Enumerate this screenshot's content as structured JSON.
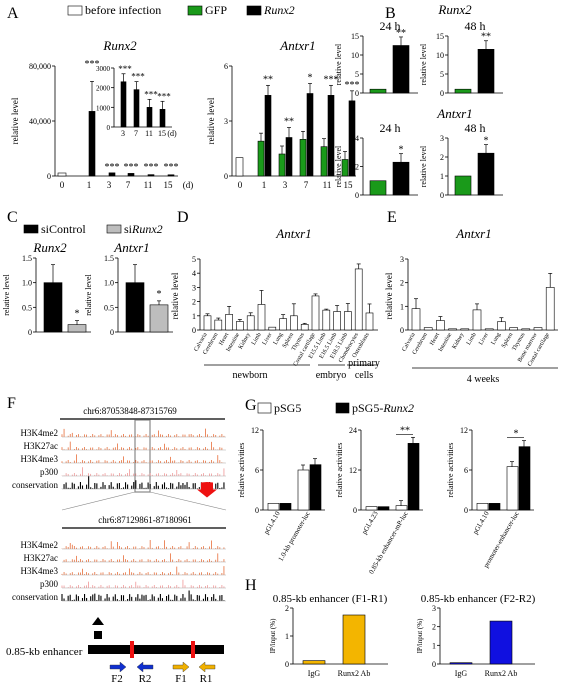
{
  "panels": [
    "A",
    "B",
    "C",
    "D",
    "E",
    "F",
    "G",
    "H"
  ],
  "colors": {
    "before": "#ffffff",
    "gfp": "#1a9a1a",
    "runx2": "#000000",
    "sicontrol": "#000000",
    "sirunx2": "#bdbdbd",
    "pSG5": "#ffffff",
    "pSG5Runx2": "#000000",
    "igg_f1": "#f3b500",
    "runx2ab_f1": "#f3b500",
    "igg_f2": "#1010e0",
    "runx2ab_f2": "#1010e0",
    "track": "#e55a1e",
    "highlight": "#888888",
    "arrow_red": "#ee1111"
  },
  "legendA": {
    "before": "before infection",
    "gfp": "GFP",
    "runx2": "Runx2"
  },
  "legendC": {
    "sicontrol": "siControl",
    "sirunx2_prefix": "si",
    "sirunx2_gene": "Runx2"
  },
  "legendG": {
    "pSG5": "pSG5",
    "pSG5Runx2_prefix": "pSG5-",
    "pSG5Runx2_gene": "Runx2"
  },
  "common": {
    "ylabel": "relative level",
    "ylabelActivities": "relative activities",
    "ylabelIP": "IP/input (%)",
    "days_unit": "(d)"
  },
  "chart_data": [
    {
      "panel": "A",
      "type": "bar",
      "title": "Runx2",
      "xlabel": "(d)",
      "ylabel": "relative level",
      "categories": [
        "0",
        "1",
        "3",
        "7",
        "11",
        "15"
      ],
      "ylim": [
        0,
        80000
      ],
      "yticks": [
        "0",
        "40,000",
        "80,000"
      ],
      "series": [
        {
          "name": "before infection",
          "values": [
            1,
            null,
            null,
            null,
            null,
            null
          ]
        },
        {
          "name": "GFP",
          "values": [
            null,
            0,
            0,
            0,
            0,
            0
          ]
        },
        {
          "name": "Runx2",
          "values": [
            null,
            47000,
            2300,
            1900,
            1000,
            900
          ]
        }
      ],
      "significance": [
        "",
        "***",
        "***",
        "***",
        "***",
        "***"
      ],
      "inset": {
        "categories": [
          "3",
          "7",
          "11",
          "15"
        ],
        "ylim": [
          0,
          3000
        ],
        "yticks": [
          "0",
          "1000",
          "2000",
          "3000"
        ],
        "values": [
          2300,
          1900,
          1000,
          900
        ],
        "significance": [
          "***",
          "***",
          "***",
          "***"
        ],
        "unit": "(d)"
      }
    },
    {
      "panel": "A",
      "type": "bar",
      "title": "Antxr1",
      "ylabel": "relative level",
      "categories": [
        "0",
        "1",
        "3",
        "7",
        "11",
        "15"
      ],
      "ylim": [
        0,
        6
      ],
      "yticks": [
        "0",
        "3",
        "6"
      ],
      "series": [
        {
          "name": "before infection",
          "values": [
            1,
            null,
            null,
            null,
            null,
            null
          ]
        },
        {
          "name": "GFP",
          "values": [
            null,
            1.9,
            1.2,
            2.0,
            1.6,
            0.9
          ]
        },
        {
          "name": "Runx2",
          "values": [
            null,
            4.4,
            2.1,
            4.5,
            4.4,
            4.1
          ]
        }
      ],
      "significance": [
        "",
        "**",
        "**",
        "*",
        "***",
        "***"
      ]
    },
    {
      "panel": "B",
      "type": "bar",
      "title": "Runx2",
      "subplots": [
        {
          "label": "24 h",
          "ylim": [
            0,
            15
          ],
          "yticks": [
            "0",
            "5",
            "10",
            "15"
          ],
          "values": {
            "GFP": 1,
            "Runx2": 12.5
          },
          "sig": "**"
        },
        {
          "label": "48 h",
          "ylim": [
            0,
            15
          ],
          "yticks": [
            "0",
            "5",
            "10",
            "15"
          ],
          "values": {
            "GFP": 1,
            "Runx2": 11.5
          },
          "sig": "**"
        }
      ]
    },
    {
      "panel": "B",
      "type": "bar",
      "title": "Antxr1",
      "subplots": [
        {
          "label": "24 h",
          "ylim": [
            0,
            4
          ],
          "yticks": [
            "0",
            "2",
            "4"
          ],
          "values": {
            "GFP": 1,
            "Runx2": 2.3
          },
          "sig": "*"
        },
        {
          "label": "48 h",
          "ylim": [
            0,
            3
          ],
          "yticks": [
            "0",
            "1",
            "2",
            "3"
          ],
          "values": {
            "GFP": 1,
            "Runx2": 2.2
          },
          "sig": "*"
        }
      ]
    },
    {
      "panel": "C",
      "type": "bar",
      "subplots": [
        {
          "title": "Runx2",
          "ylim": [
            0,
            1.5
          ],
          "yticks": [
            "0",
            "0.5",
            "1.0",
            "1.5"
          ],
          "values": {
            "siControl": 1.0,
            "siRunx2": 0.15
          },
          "sig": "*"
        },
        {
          "title": "Antxr1",
          "ylim": [
            0,
            1.5
          ],
          "yticks": [
            "0",
            "0.5",
            "1.0",
            "1.5"
          ],
          "values": {
            "siControl": 1.0,
            "siRunx2": 0.55
          },
          "sig": "*"
        }
      ]
    },
    {
      "panel": "D",
      "type": "bar",
      "title": "Antxr1",
      "ylabel": "relative level",
      "ylim": [
        0,
        5
      ],
      "yticks": [
        "0",
        "1",
        "2",
        "3",
        "4",
        "5"
      ],
      "categories": [
        "Calvaria",
        "Cerebrum",
        "Heart",
        "Intestine",
        "Kidney",
        "Limb",
        "Liver",
        "Lung",
        "Spleen",
        "Thymus",
        "Costal cartilage",
        "E15.5 Limb",
        "E16.5 Limb",
        "E18.5 Limb",
        "Chondrocytes",
        "Osteoblasts"
      ],
      "values": [
        1.0,
        0.7,
        1.1,
        0.6,
        1.0,
        1.8,
        0.2,
        0.8,
        1.0,
        0.4,
        2.4,
        1.4,
        1.3,
        1.3,
        4.3,
        1.2
      ],
      "groups": [
        "newborn",
        "embryo",
        "primary cells"
      ]
    },
    {
      "panel": "E",
      "type": "bar",
      "title": "Antxr1",
      "ylabel": "relative level",
      "ylim": [
        0,
        3
      ],
      "yticks": [
        "0",
        "1",
        "2",
        "3"
      ],
      "categories": [
        "Calvaria",
        "Cerebrum",
        "Heart",
        "Intestine",
        "Kidney",
        "Limb",
        "Liver",
        "Lung",
        "Spleen",
        "Thymus",
        "Bone marrow",
        "Costal cartilage"
      ],
      "values": [
        0.9,
        0.1,
        0.4,
        0.05,
        0.05,
        0.85,
        0.05,
        0.35,
        0.1,
        0.05,
        0.1,
        1.8
      ],
      "groups": [
        "4 weeks"
      ]
    },
    {
      "panel": "G",
      "type": "bar",
      "ylabel": "relative activities",
      "subplots": [
        {
          "xlabels": [
            "pGL4.10",
            "1.0-kb promoter-luc"
          ],
          "ylim": [
            0,
            12
          ],
          "yticks": [
            "0",
            "6",
            "12"
          ],
          "pSG5": [
            1,
            6
          ],
          "pSG5Runx2": [
            1,
            6.8
          ],
          "sig": ""
        },
        {
          "xlabels": [
            "pGL4.23",
            "0.85-kb enhancer-mP-luc"
          ],
          "ylim": [
            0,
            24
          ],
          "yticks": [
            "0",
            "12",
            "24"
          ],
          "pSG5": [
            1,
            1.3
          ],
          "pSG5Runx2": [
            1,
            20
          ],
          "sig": "**"
        },
        {
          "xlabels": [
            "pGL4.10",
            "promoter-enhancer-luc"
          ],
          "ylim": [
            0,
            12
          ],
          "yticks": [
            "0",
            "6",
            "12"
          ],
          "pSG5": [
            1,
            6.5
          ],
          "pSG5Runx2": [
            1,
            9.5
          ],
          "sig": "*"
        }
      ]
    },
    {
      "panel": "H",
      "type": "bar",
      "ylabel": "IP/input (%)",
      "subplots": [
        {
          "title": "0.85-kb enhancer (F1-R1)",
          "categories": [
            "IgG",
            "Runx2 Ab"
          ],
          "values": [
            0.12,
            1.75
          ],
          "ylim": [
            0,
            2
          ],
          "yticks": [
            "0",
            "1",
            "2"
          ]
        },
        {
          "title": "0.85-kb enhancer (F2-R2)",
          "categories": [
            "IgG",
            "Runx2 Ab"
          ],
          "values": [
            0.07,
            2.3
          ],
          "ylim": [
            0,
            3
          ],
          "yticks": [
            "0",
            "1",
            "2",
            "3"
          ]
        }
      ]
    }
  ],
  "panelF": {
    "region1": "chr6:87053848-87315769",
    "region2": "chr6:87129861-87180961",
    "tracks": [
      "H3K4me2",
      "H3K27ac",
      "H3K4me3",
      "p300",
      "conservation"
    ],
    "enhancer_label": "0.85-kb enhancer",
    "primers": [
      "F2",
      "R2",
      "F1",
      "R1"
    ]
  }
}
